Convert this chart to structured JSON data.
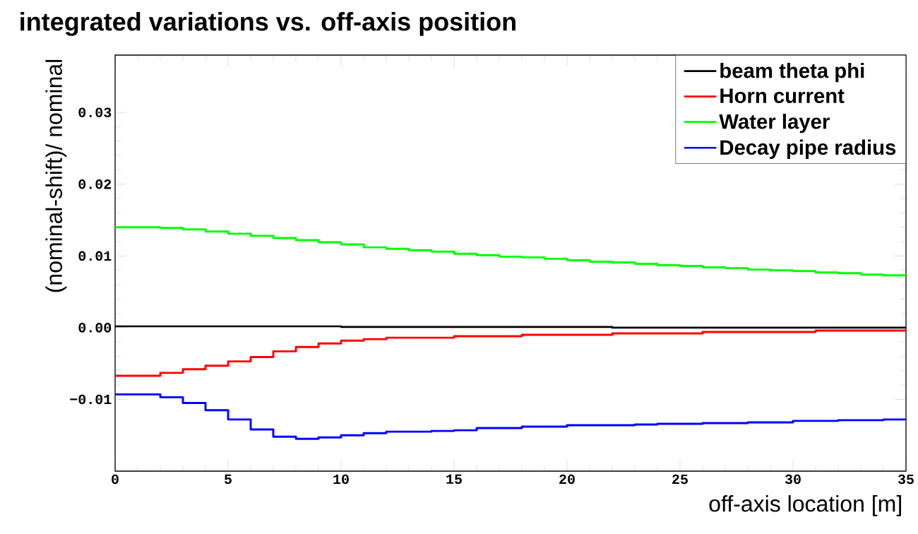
{
  "chart_data": {
    "type": "step",
    "title": "integrated variations vs. off-axis position",
    "xlabel": "off-axis location [m]",
    "ylabel": "(nominal-shift)/ nominal",
    "x": [
      0,
      1,
      2,
      3,
      4,
      5,
      6,
      7,
      8,
      9,
      10,
      11,
      12,
      13,
      14,
      15,
      16,
      17,
      18,
      19,
      20,
      21,
      22,
      23,
      24,
      25,
      26,
      27,
      28,
      29,
      30,
      31,
      32,
      33,
      34,
      35
    ],
    "series": [
      {
        "name": "beam theta phi",
        "color": "#000000",
        "values": [
          0.0002,
          0.0002,
          0.0002,
          0.0002,
          0.0002,
          0.0002,
          0.0002,
          0.0002,
          0.0002,
          0.0002,
          0.0001,
          0.0001,
          0.0001,
          0.0001,
          0.0001,
          0.0001,
          0.0001,
          0.0001,
          0.0001,
          0.0001,
          0.0001,
          0.0001,
          0.0,
          0.0,
          0.0,
          0.0,
          0.0,
          0.0,
          0.0,
          0.0,
          0.0,
          0.0,
          0.0,
          0.0,
          0.0,
          0.0
        ]
      },
      {
        "name": "Horn current",
        "color": "#ff0000",
        "values": [
          -0.0067,
          -0.0067,
          -0.0063,
          -0.0058,
          -0.0053,
          -0.0047,
          -0.0041,
          -0.0033,
          -0.0027,
          -0.0022,
          -0.0018,
          -0.0016,
          -0.0014,
          -0.0014,
          -0.0014,
          -0.0012,
          -0.0012,
          -0.0012,
          -0.001,
          -0.001,
          -0.001,
          -0.001,
          -0.0008,
          -0.0008,
          -0.0008,
          -0.0008,
          -0.0006,
          -0.0006,
          -0.0006,
          -0.0006,
          -0.0006,
          -0.0004,
          -0.0004,
          -0.0004,
          -0.0004,
          -0.0004
        ]
      },
      {
        "name": "Water layer",
        "color": "#00ff00",
        "values": [
          0.014,
          0.014,
          0.0139,
          0.0137,
          0.0134,
          0.0131,
          0.0128,
          0.0125,
          0.0122,
          0.0119,
          0.0116,
          0.0112,
          0.011,
          0.0108,
          0.0106,
          0.0103,
          0.0101,
          0.0099,
          0.0098,
          0.0096,
          0.0094,
          0.0092,
          0.0091,
          0.0089,
          0.0087,
          0.0086,
          0.0084,
          0.0083,
          0.0081,
          0.008,
          0.0079,
          0.0077,
          0.0076,
          0.0074,
          0.0073,
          0.0072
        ]
      },
      {
        "name": "Decay pipe radius",
        "color": "#0000ff",
        "values": [
          -0.0093,
          -0.0093,
          -0.0097,
          -0.0105,
          -0.0115,
          -0.0128,
          -0.0142,
          -0.0152,
          -0.0155,
          -0.0153,
          -0.015,
          -0.0147,
          -0.0145,
          -0.0145,
          -0.0144,
          -0.0143,
          -0.014,
          -0.014,
          -0.0138,
          -0.0138,
          -0.0136,
          -0.0136,
          -0.0136,
          -0.0135,
          -0.0134,
          -0.0134,
          -0.0133,
          -0.0133,
          -0.0132,
          -0.0132,
          -0.013,
          -0.013,
          -0.0129,
          -0.0129,
          -0.0128,
          -0.0128
        ]
      }
    ],
    "xlim": [
      0,
      35
    ],
    "ylim": [
      -0.02,
      0.038
    ],
    "xticks": [
      0,
      5,
      10,
      15,
      20,
      25,
      30,
      35
    ],
    "yticks": [
      {
        "value": -0.01,
        "label": "−0.01"
      },
      {
        "value": 0,
        "label": "0.00"
      },
      {
        "value": 0.01,
        "label": "0.01"
      },
      {
        "value": 0.02,
        "label": "0.02"
      },
      {
        "value": 0.03,
        "label": "0.03"
      }
    ],
    "legend": "top right",
    "grid": false
  }
}
